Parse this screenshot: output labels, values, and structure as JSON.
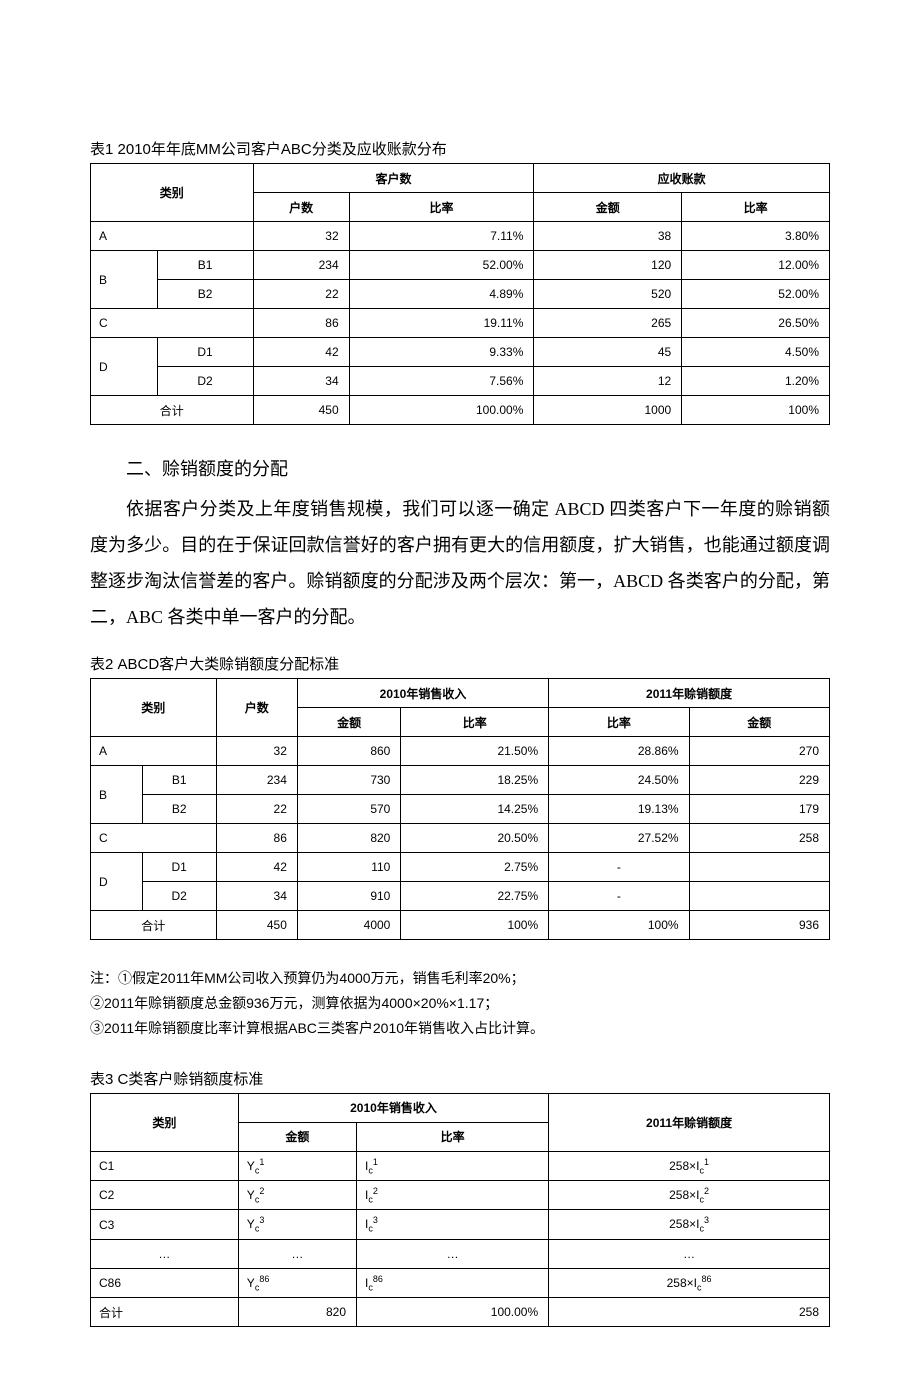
{
  "t1": {
    "title": "表1 2010年年底MM公司客户ABC分类及应收账款分布",
    "head": {
      "cat": "类别",
      "cust": "客户数",
      "hs": "户数",
      "bl": "比率",
      "ar": "应收账款",
      "je": "金额"
    },
    "rows": [
      {
        "cat": "A",
        "hs": "32",
        "bl": "7.11%",
        "je": "38",
        "jl": "3.80%"
      },
      {
        "cat": "B",
        "sub": "B1",
        "hs": "234",
        "bl": "52.00%",
        "je": "120",
        "jl": "12.00%"
      },
      {
        "sub": "B2",
        "hs": "22",
        "bl": "4.89%",
        "je": "520",
        "jl": "52.00%"
      },
      {
        "cat": "C",
        "hs": "86",
        "bl": "19.11%",
        "je": "265",
        "jl": "26.50%"
      },
      {
        "cat": "D",
        "sub": "D1",
        "hs": "42",
        "bl": "9.33%",
        "je": "45",
        "jl": "4.50%"
      },
      {
        "sub": "D2",
        "hs": "34",
        "bl": "7.56%",
        "je": "12",
        "jl": "1.20%"
      },
      {
        "cat": "合计",
        "hs": "450",
        "bl": "100.00%",
        "je": "1000",
        "jl": "100%"
      }
    ]
  },
  "sec2_title": "二、赊销额度的分配",
  "sec2_para": "依据客户分类及上年度销售规模，我们可以逐一确定 ABCD 四类客户下一年度的赊销额度为多少。目的在于保证回款信誉好的客户拥有更大的信用额度，扩大销售，也能通过额度调整逐步淘汰信誉差的客户。赊销额度的分配涉及两个层次：第一，ABCD 各类客户的分配，第二，ABC 各类中单一客户的分配。",
  "t2": {
    "title": "表2  ABCD客户大类赊销额度分配标准",
    "head": {
      "cat": "类别",
      "hs": "户数",
      "s2010": "2010年销售收入",
      "je": "金额",
      "bl": "比率",
      "e2011": "2011年赊销额度"
    },
    "rows": [
      {
        "cat": "A",
        "hs": "32",
        "je": "860",
        "bl": "21.50%",
        "el": "28.86%",
        "ej": "270"
      },
      {
        "cat": "B",
        "sub": "B1",
        "hs": "234",
        "je": "730",
        "bl": "18.25%",
        "el": "24.50%",
        "ej": "229"
      },
      {
        "sub": "B2",
        "hs": "22",
        "je": "570",
        "bl": "14.25%",
        "el": "19.13%",
        "ej": "179"
      },
      {
        "cat": "C",
        "hs": "86",
        "je": "820",
        "bl": "20.50%",
        "el": "27.52%",
        "ej": "258"
      },
      {
        "cat": "D",
        "sub": "D1",
        "hs": "42",
        "je": "110",
        "bl": "2.75%",
        "el": "-",
        "ej": ""
      },
      {
        "sub": "D2",
        "hs": "34",
        "je": "910",
        "bl": "22.75%",
        "el": "-",
        "ej": ""
      },
      {
        "cat": "合计",
        "hs": "450",
        "je": "4000",
        "bl": "100%",
        "el": "100%",
        "ej": "936"
      }
    ]
  },
  "notes": {
    "n1": "注：①假定2011年MM公司收入预算仍为4000万元，销售毛利率20%；",
    "n2": "②2011年赊销额度总金额936万元，测算依据为4000×20%×1.17；",
    "n3": "③2011年赊销额度比率计算根据ABC三类客户2010年销售收入占比计算。"
  },
  "t3": {
    "title": "表3  C类客户赊销额度标准",
    "head": {
      "cat": "类别",
      "s2010": "2010年销售收入",
      "je": "金额",
      "bl": "比率",
      "e2011": "2011年赊销额度"
    },
    "rows": [
      {
        "cat": "C1",
        "y": "Y_c^1",
        "i": "I_c^1",
        "e": "258×I_c^1"
      },
      {
        "cat": "C2",
        "y": "Y_c^2",
        "i": "I_c^2",
        "e": "258×I_c^2"
      },
      {
        "cat": "C3",
        "y": "Y_c^3",
        "i": "I_c^3",
        "e": "258×I_c^3"
      },
      {
        "cat": "…",
        "y": "…",
        "i": "…",
        "e": "…"
      },
      {
        "cat": "C86",
        "y": "Y_c^86",
        "i": "I_c^86",
        "e": "258×I_c^86"
      },
      {
        "cat": "合计",
        "y": "820",
        "i": "100.00%",
        "e": "258"
      }
    ]
  }
}
